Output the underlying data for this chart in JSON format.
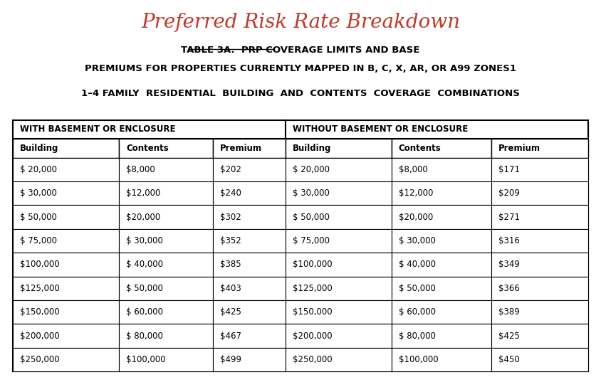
{
  "title": "Preferred Risk Rate Breakdown",
  "title_color": "#c0392b",
  "subtitle1": "TABLE 3A.  PRP COVERAGE LIMITS AND BASE",
  "subtitle2": "PREMIUMS FOR PROPERTIES CURRENTLY MAPPED IN B, C, X, AR, OR A99 ZONES1",
  "subtitle3": "1–4 FAMILY  RESIDENTIAL  BUILDING  AND  CONTENTS  COVERAGE  COMBINATIONS",
  "col_header1": "WITH BASEMENT OR ENCLOSURE",
  "col_header2": "WITHOUT BASEMENT OR ENCLOSURE",
  "sub_headers": [
    "Building",
    "Contents",
    "Premium",
    "Building",
    "Contents",
    "Premium"
  ],
  "rows": [
    [
      "$ 20,000",
      "$8,000",
      "$202",
      "$ 20,000",
      "$8,000",
      "$171"
    ],
    [
      "$ 30,000",
      "$12,000",
      "$240",
      "$ 30,000",
      "$12,000",
      "$209"
    ],
    [
      "$ 50,000",
      "$20,000",
      "$302",
      "$ 50,000",
      "$20,000",
      "$271"
    ],
    [
      "$ 75,000",
      "$ 30,000",
      "$352",
      "$ 75,000",
      "$ 30,000",
      "$316"
    ],
    [
      "$100,000",
      "$ 40,000",
      "$385",
      "$100,000",
      "$ 40,000",
      "$349"
    ],
    [
      "$125,000",
      "$ 50,000",
      "$403",
      "$125,000",
      "$ 50,000",
      "$366"
    ],
    [
      "$150,000",
      "$ 60,000",
      "$425",
      "$150,000",
      "$ 60,000",
      "$389"
    ],
    [
      "$200,000",
      "$ 80,000",
      "$467",
      "$200,000",
      "$ 80,000",
      "$425"
    ],
    [
      "$250,000",
      "$100,000",
      "$499",
      "$250,000",
      "$100,000",
      "$450"
    ]
  ],
  "bg_color": "#ffffff",
  "table_border_color": "#000000",
  "header_bg": "#ffffff",
  "row_bg": "#ffffff"
}
